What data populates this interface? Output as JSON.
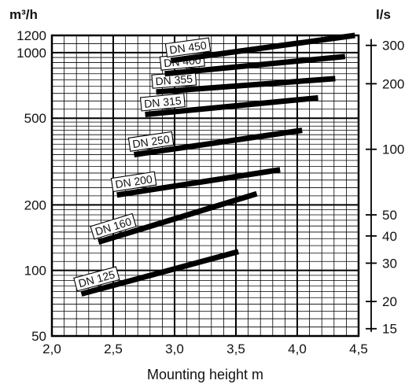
{
  "chart_data": {
    "type": "line",
    "xlabel": "Mounting height m",
    "y_unit_left": "m³/h",
    "y_unit_right": "l/s",
    "xlim": [
      2.0,
      4.5
    ],
    "ylim": [
      50,
      1200
    ],
    "yscale": "log",
    "grid": true,
    "x_ticks": [
      2.0,
      2.5,
      3.0,
      3.5,
      4.0,
      4.5
    ],
    "x_tick_labels": [
      "2,0",
      "2,5",
      "3,0",
      "3,5",
      "4,0",
      "4,5"
    ],
    "y_ticks_left": [
      50,
      100,
      200,
      500,
      1000,
      1200
    ],
    "y_tick_labels_left": [
      "50",
      "100",
      "200",
      "500",
      "1000",
      "1200"
    ],
    "y_ticks_right": [
      15,
      20,
      30,
      40,
      50,
      100,
      200,
      300
    ],
    "y_tick_labels_right": [
      "15",
      "20",
      "30",
      "40",
      "50",
      "100",
      "200",
      "300"
    ],
    "series": [
      {
        "name": "DN 125",
        "x": [
          2.24,
          3.52
        ],
        "y": [
          78,
          122
        ]
      },
      {
        "name": "DN 160",
        "x": [
          2.38,
          3.67
        ],
        "y": [
          135,
          225
        ]
      },
      {
        "name": "DN 200",
        "x": [
          2.53,
          3.86
        ],
        "y": [
          222,
          290
        ]
      },
      {
        "name": "DN 250",
        "x": [
          2.67,
          4.04
        ],
        "y": [
          340,
          440
        ]
      },
      {
        "name": "DN 315",
        "x": [
          2.76,
          4.17
        ],
        "y": [
          520,
          620
        ]
      },
      {
        "name": "DN 355",
        "x": [
          2.85,
          4.31
        ],
        "y": [
          660,
          760
        ]
      },
      {
        "name": "DN 400",
        "x": [
          2.92,
          4.39
        ],
        "y": [
          800,
          960
        ]
      },
      {
        "name": "DN 450",
        "x": [
          2.97,
          4.47
        ],
        "y": [
          920,
          1200
        ]
      }
    ]
  }
}
